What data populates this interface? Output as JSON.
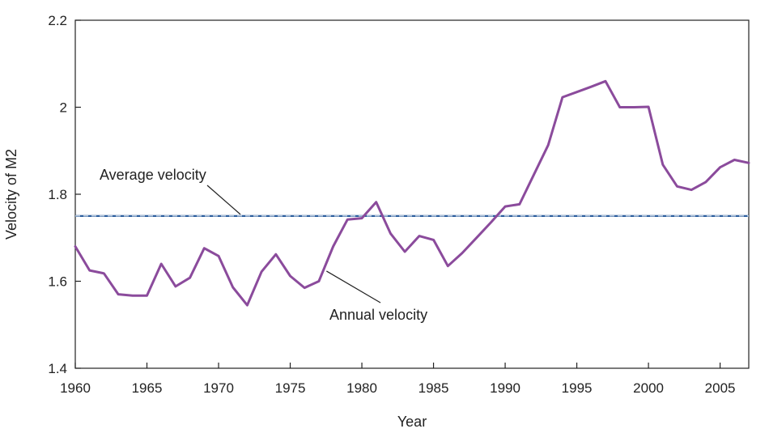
{
  "chart_data": {
    "type": "line",
    "title": "",
    "xlabel": "Year",
    "ylabel": "Velocity of M2",
    "xlim": [
      1960,
      2007
    ],
    "ylim": [
      1.4,
      2.2
    ],
    "grid": false,
    "x_ticks": [
      1960,
      1965,
      1970,
      1975,
      1980,
      1985,
      1990,
      1995,
      2000,
      2005
    ],
    "y_ticks": [
      1.4,
      1.6,
      1.8,
      2.0,
      2.2
    ],
    "x_tick_labels": [
      "1960",
      "1965",
      "1970",
      "1975",
      "1980",
      "1985",
      "1990",
      "1995",
      "2000",
      "2005"
    ],
    "y_tick_labels": [
      "1.4",
      "1.6",
      "1.8",
      "2",
      "2.2"
    ],
    "series": [
      {
        "color": "#8b4b9c",
        "x": [
          1960,
          1961,
          1962,
          1963,
          1964,
          1965,
          1966,
          1967,
          1968,
          1969,
          1970,
          1971,
          1972,
          1973,
          1974,
          1975,
          1976,
          1977,
          1978,
          1979,
          1980,
          1981,
          1982,
          1983,
          1984,
          1985,
          1986,
          1987,
          1988,
          1989,
          1990,
          1991,
          1992,
          1993,
          1994,
          1995,
          1996,
          1997,
          1998,
          1999,
          2000,
          2001,
          2002,
          2003,
          2004,
          2005,
          2006,
          2007
        ],
        "values": [
          1.68,
          1.625,
          1.618,
          1.57,
          1.567,
          1.567,
          1.64,
          1.588,
          1.608,
          1.676,
          1.658,
          1.586,
          1.545,
          1.622,
          1.662,
          1.612,
          1.585,
          1.6,
          1.68,
          1.742,
          1.745,
          1.782,
          1.71,
          1.668,
          1.704,
          1.695,
          1.635,
          1.665,
          1.7,
          1.735,
          1.772,
          1.777,
          1.845,
          1.913,
          2.023,
          2.035,
          2.047,
          2.06,
          2.0,
          2.0,
          2.001,
          1.868,
          1.818,
          1.81,
          1.828,
          1.862,
          1.879,
          1.872
        ]
      }
    ],
    "reference_lines": [
      {
        "y": 1.75,
        "color": "#2c5f9e",
        "style": "dashed"
      }
    ],
    "annotations": [
      {
        "text": "Average velocity",
        "target": "reference line"
      },
      {
        "text": "Annual velocity",
        "target": "series line"
      }
    ]
  }
}
